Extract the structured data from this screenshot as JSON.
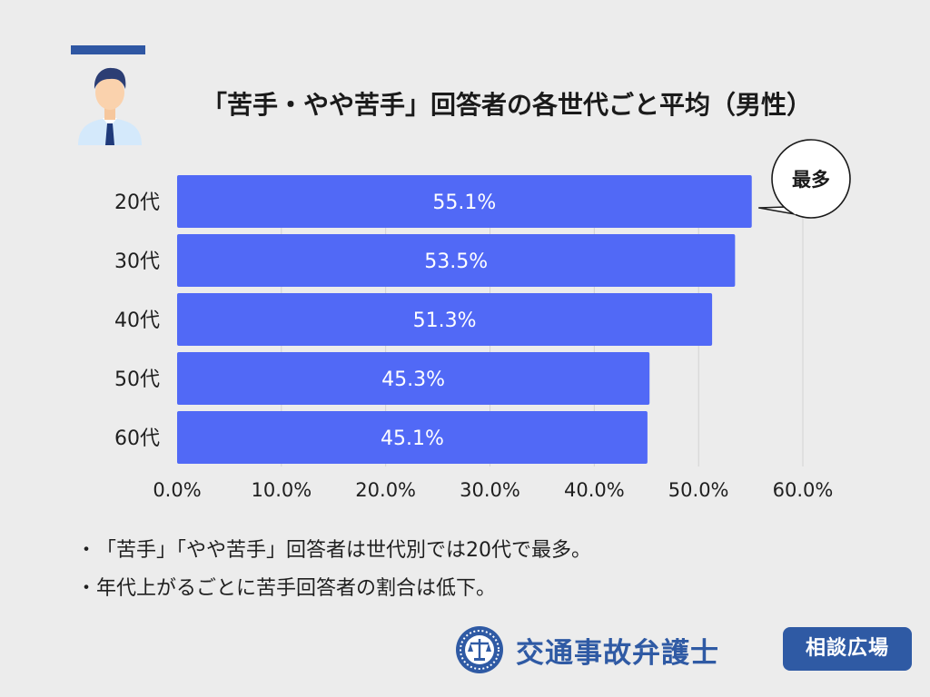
{
  "header": {
    "title": "「苦手・やや苦手」回答者の各世代ごと平均（男性）",
    "icons": [
      "male-office-worker-icon"
    ]
  },
  "chart_data": {
    "type": "bar",
    "orientation": "horizontal",
    "categories": [
      "20代",
      "30代",
      "40代",
      "50代",
      "60代"
    ],
    "values": [
      55.1,
      53.5,
      51.3,
      45.3,
      45.1
    ],
    "value_labels": [
      "55.1%",
      "53.5%",
      "51.3%",
      "45.3%",
      "45.1%"
    ],
    "xlim": [
      0,
      60
    ],
    "x_ticks": [
      0,
      10,
      20,
      30,
      40,
      50,
      60
    ],
    "x_tick_labels": [
      "0.0%",
      "10.0%",
      "20.0%",
      "30.0%",
      "40.0%",
      "50.0%",
      "60.0%"
    ],
    "grid": "vertical",
    "legend": "none",
    "annotation": {
      "text": "最多",
      "target_category": "20代",
      "shape": "speech-bubble"
    }
  },
  "notes": [
    "「苦手」「やや苦手」回答者は世代別では20代で最多。",
    "年代上がるごとに苦手回答者の割合は低下。"
  ],
  "note_bullet": "・",
  "logo": {
    "name": "交通事故弁護士",
    "badge": "相談広場",
    "icon": "scales-of-justice-emblem-icon"
  },
  "colors": {
    "background": "#ececec",
    "bar": "#5169f6",
    "bar_label": "#ffffff",
    "accent": "#2f57a3",
    "grid": "#d2d2d2",
    "logo_blue": "#2f5aa4",
    "text": "#1f1f1f"
  }
}
